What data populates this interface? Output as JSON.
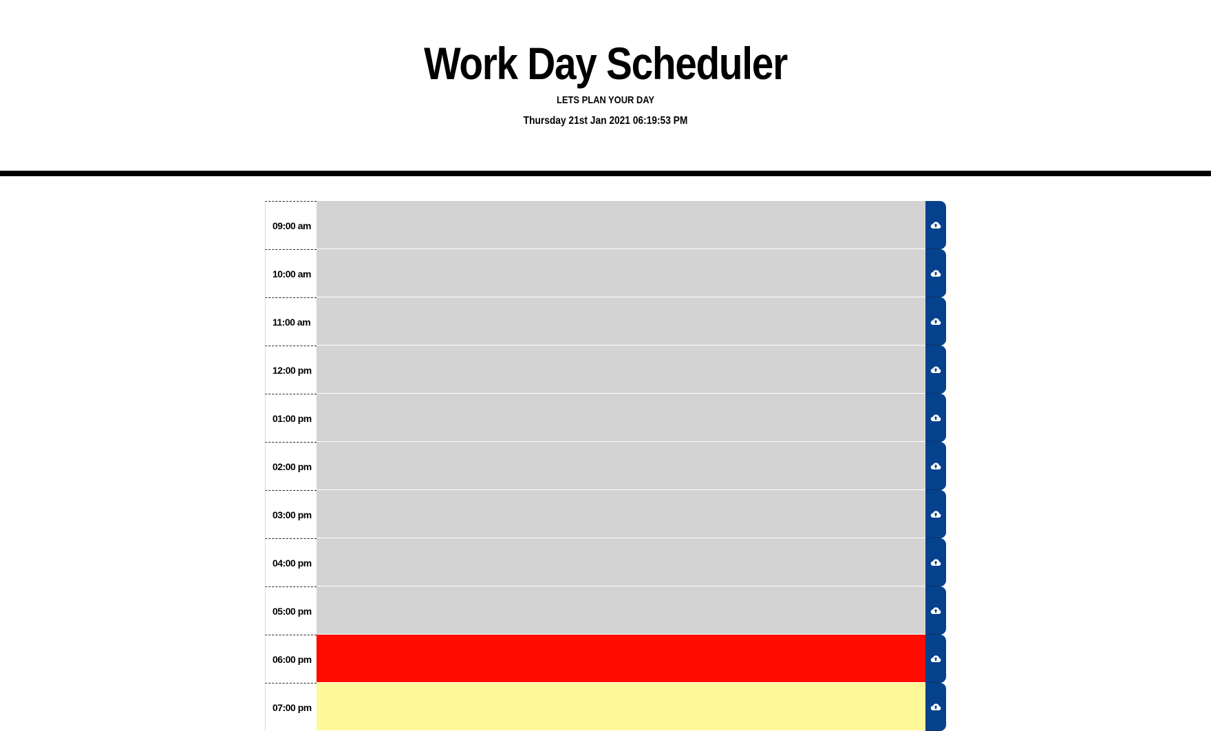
{
  "header": {
    "title": "Work Day Scheduler",
    "subtitle": "LETS PLAN YOUR DAY",
    "datetime": "Thursday 21st Jan 2021 06:19:53 PM"
  },
  "colors": {
    "past": "#d3d3d3",
    "present": "#ff0b00",
    "future": "#fef898",
    "save_button": "#06418d"
  },
  "rows": [
    {
      "time": "09:00 am",
      "status": "past",
      "text": "",
      "save_icon": "cloud-upload-icon"
    },
    {
      "time": "10:00 am",
      "status": "past",
      "text": "",
      "save_icon": "cloud-upload-icon"
    },
    {
      "time": "11:00 am",
      "status": "past",
      "text": "",
      "save_icon": "cloud-upload-icon"
    },
    {
      "time": "12:00 pm",
      "status": "past",
      "text": "",
      "save_icon": "cloud-upload-icon"
    },
    {
      "time": "01:00 pm",
      "status": "past",
      "text": "",
      "save_icon": "cloud-upload-icon"
    },
    {
      "time": "02:00 pm",
      "status": "past",
      "text": "",
      "save_icon": "cloud-upload-icon"
    },
    {
      "time": "03:00 pm",
      "status": "past",
      "text": "",
      "save_icon": "cloud-upload-icon"
    },
    {
      "time": "04:00 pm",
      "status": "past",
      "text": "",
      "save_icon": "cloud-upload-icon"
    },
    {
      "time": "05:00 pm",
      "status": "past",
      "text": "",
      "save_icon": "cloud-upload-icon"
    },
    {
      "time": "06:00 pm",
      "status": "present",
      "text": "",
      "save_icon": "cloud-upload-icon"
    },
    {
      "time": "07:00 pm",
      "status": "future",
      "text": "",
      "save_icon": "cloud-upload-icon"
    }
  ]
}
